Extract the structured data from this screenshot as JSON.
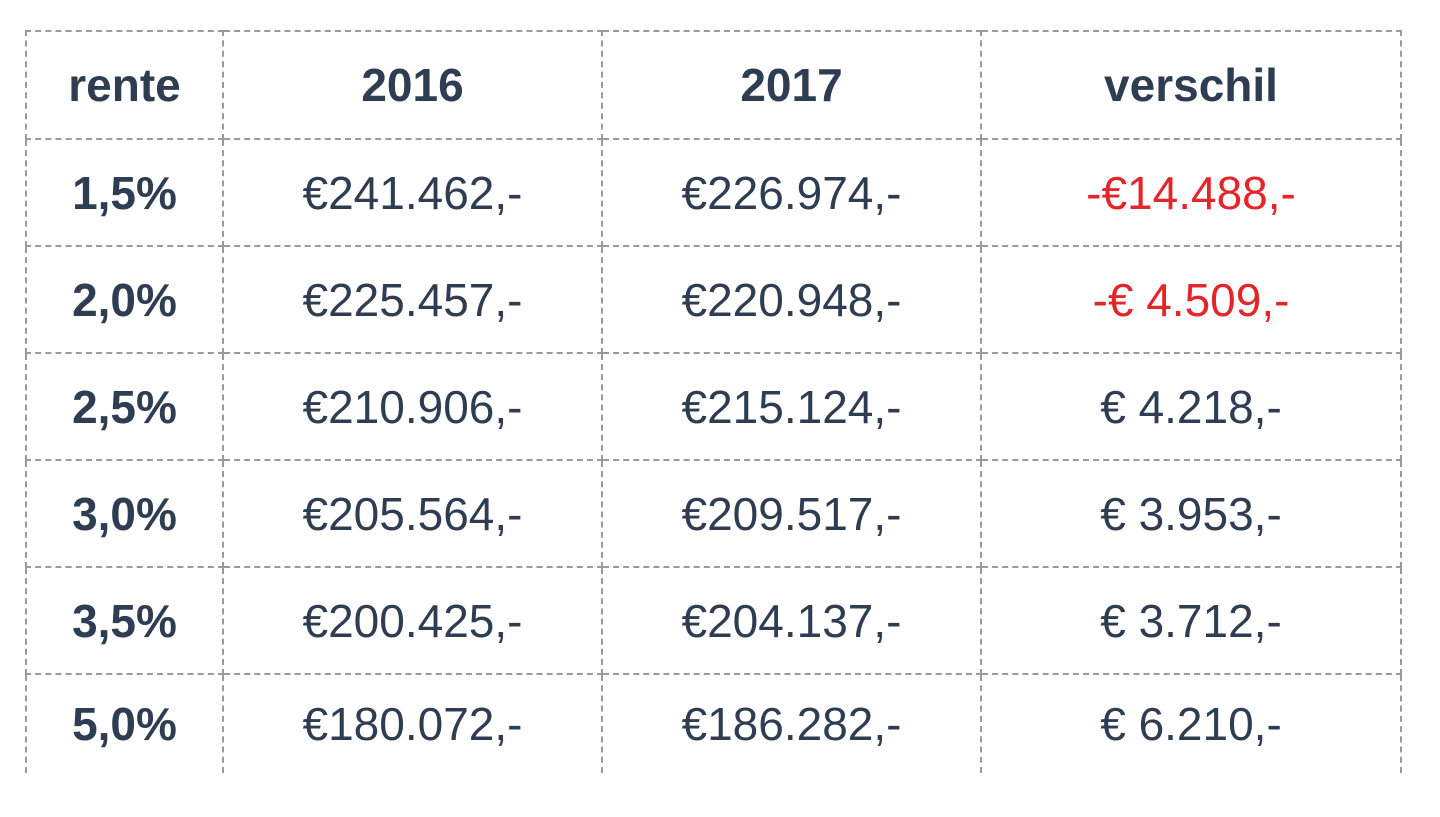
{
  "table": {
    "header": [
      "rente",
      "2016",
      "2017",
      "verschil"
    ],
    "rows": [
      [
        "1,5%",
        "€241.462,-",
        "€226.974,-",
        "-€14.488,-"
      ],
      [
        "2,0%",
        "€225.457,-",
        "€220.948,-",
        "-€ 4.509,-"
      ],
      [
        "2,5%",
        "€210.906,-",
        "€215.124,-",
        "€ 4.218,-"
      ],
      [
        "3,0%",
        "€205.564,-",
        "€209.517,-",
        "€ 3.953,-"
      ],
      [
        "3,5%",
        "€200.425,-",
        "€204.137,-",
        "€ 3.712,-"
      ],
      [
        "5,0%",
        "€180.072,-",
        "€186.282,-",
        "€ 6.210,-"
      ]
    ]
  }
}
